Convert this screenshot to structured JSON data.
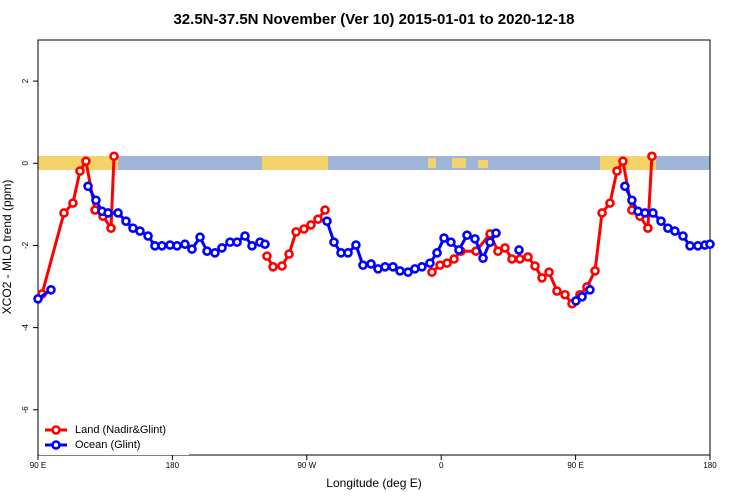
{
  "chart_data": {
    "type": "line",
    "title": "32.5N-37.5N November (Ver 10)   2015-01-01 to 2020-12-18",
    "xlabel": "Longitude (deg E)",
    "ylabel": "XCO2 - MLO trend (ppm)",
    "xlim": [
      90,
      540
    ],
    "xticks": [
      {
        "value": 90,
        "label": "90 E"
      },
      180,
      {
        "value": 270,
        "label": "90 W"
      },
      {
        "value": 360,
        "label": "0"
      },
      {
        "value": 450,
        "label": "90 E"
      },
      {
        "value": 540,
        "label": "180"
      }
    ],
    "ylim": [
      -7.1,
      3
    ],
    "yticks": [
      2,
      0,
      -2,
      -4,
      -6
    ],
    "legend": "bottom-left",
    "series": [
      {
        "name": "Land (Nadir&Glint)",
        "color": "#ff0000",
        "x": [
          92.7,
          107.4,
          113.4,
          118.1,
          122.1,
          128.2,
          133.5,
          138.9,
          140.9,
          null,
          243.3,
          247.4,
          253.4,
          258.1,
          262.8,
          268.1,
          272.8,
          277.5,
          282.2,
          null,
          353.8,
          359.2,
          363.9,
          368.6,
          373.2,
          383.3,
          392.7,
          398.0,
          402.7,
          407.4,
          412.7,
          418.1,
          422.8,
          427.5,
          432.2,
          437.5,
          442.9,
          447.6,
          452.9,
          457.6,
          463.0,
          467.7,
          473.0,
          477.7,
          481.7,
          487.7,
          493.1,
          498.4,
          501.1
        ],
        "values": [
          -3.18,
          -1.21,
          -0.97,
          -0.19,
          0.05,
          -1.14,
          -1.29,
          -1.58,
          0.17,
          null,
          -2.26,
          -2.52,
          -2.5,
          -2.21,
          -1.67,
          -1.6,
          -1.5,
          -1.36,
          -1.14,
          null,
          -2.65,
          -2.48,
          -2.43,
          -2.33,
          -2.14,
          -2.14,
          -1.72,
          -2.14,
          -2.06,
          -2.33,
          -2.33,
          -2.28,
          -2.5,
          -2.79,
          -2.65,
          -3.11,
          -3.2,
          -3.42,
          -3.2,
          -3.01,
          -2.62,
          -1.21,
          -0.97,
          -0.19,
          0.05,
          -1.14,
          -1.29,
          -1.58,
          0.17
        ]
      },
      {
        "name": "Ocean (Glint)",
        "color": "#0000ff",
        "x": [
          90,
          98.7,
          null,
          123.5,
          128.8,
          132.9,
          136.9,
          143.6,
          148.9,
          153.6,
          158.3,
          163.7,
          168.3,
          173.0,
          178.4,
          183.1,
          188.4,
          193.1,
          198.5,
          203.2,
          208.5,
          213.2,
          218.6,
          223.3,
          228.6,
          233.3,
          238.7,
          242.0,
          null,
          283.5,
          288.2,
          292.9,
          297.6,
          302.9,
          307.6,
          313.0,
          317.7,
          322.4,
          327.7,
          332.4,
          337.8,
          342.4,
          347.1,
          352.5,
          357.2,
          361.9,
          366.5,
          371.9,
          377.3,
          382.6,
          388.0,
          392.7,
          396.7,
          null,
          412.1,
          null,
          450.2,
          454.3,
          459.6,
          null,
          483.0,
          487.7,
          491.8,
          496.4,
          501.8,
          507.2,
          511.8,
          516.5,
          521.9,
          526.6,
          531.9,
          536.6,
          540
        ],
        "values": [
          -3.3,
          -3.08,
          null,
          -0.56,
          -0.9,
          -1.17,
          -1.21,
          -1.21,
          -1.41,
          -1.58,
          -1.65,
          -1.77,
          -2.01,
          -2.01,
          -1.99,
          -2.01,
          -1.97,
          -2.09,
          -1.8,
          -2.14,
          -2.18,
          -2.06,
          -1.92,
          -1.92,
          -1.77,
          -2.01,
          -1.92,
          -1.97,
          null,
          -1.41,
          -1.92,
          -2.18,
          -2.18,
          -1.99,
          -2.48,
          -2.45,
          -2.57,
          -2.52,
          -2.52,
          -2.62,
          -2.65,
          -2.57,
          -2.52,
          -2.43,
          -2.18,
          -1.82,
          -1.92,
          -2.11,
          -1.75,
          -1.84,
          -2.31,
          -1.92,
          -1.7,
          null,
          -2.11,
          null,
          -3.35,
          -3.25,
          -3.08,
          null,
          -0.56,
          -0.9,
          -1.17,
          -1.21,
          -1.21,
          -1.41,
          -1.58,
          -1.65,
          -1.77,
          -2.01,
          -2.01,
          -1.99,
          -1.97
        ]
      }
    ]
  }
}
